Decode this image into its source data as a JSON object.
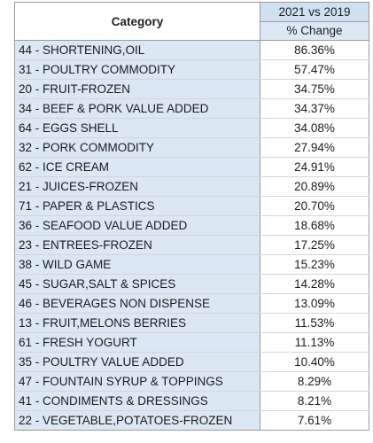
{
  "table": {
    "header": {
      "category": "Category",
      "comparison": "2021 vs 2019",
      "metric": "% Change"
    },
    "rows": [
      {
        "category": "44 - SHORTENING,OIL",
        "change": "86.36%"
      },
      {
        "category": "31 - POULTRY COMMODITY",
        "change": "57.47%"
      },
      {
        "category": "20 - FRUIT-FROZEN",
        "change": "34.75%"
      },
      {
        "category": "34 - BEEF & PORK VALUE ADDED",
        "change": "34.37%"
      },
      {
        "category": "64 - EGGS SHELL",
        "change": "34.08%"
      },
      {
        "category": "32 - PORK COMMODITY",
        "change": "27.94%"
      },
      {
        "category": "62 - ICE CREAM",
        "change": "24.91%"
      },
      {
        "category": "21 - JUICES-FROZEN",
        "change": "20.89%"
      },
      {
        "category": "71 - PAPER & PLASTICS",
        "change": "20.70%"
      },
      {
        "category": "36 - SEAFOOD VALUE ADDED",
        "change": "18.68%"
      },
      {
        "category": "23 - ENTREES-FROZEN",
        "change": "17.25%"
      },
      {
        "category": "38 - WILD GAME",
        "change": "15.23%"
      },
      {
        "category": "45 - SUGAR,SALT & SPICES",
        "change": "14.28%"
      },
      {
        "category": "46 - BEVERAGES NON DISPENSE",
        "change": "13.09%"
      },
      {
        "category": "13 - FRUIT,MELONS BERRIES",
        "change": "11.53%"
      },
      {
        "category": "61 - FRESH YOGURT",
        "change": "11.13%"
      },
      {
        "category": "35 - POULTRY VALUE ADDED",
        "change": "10.40%"
      },
      {
        "category": "47 - FOUNTAIN SYRUP & TOPPINGS",
        "change": "8.29%"
      },
      {
        "category": "41 - CONDIMENTS & DRESSINGS",
        "change": "8.21%"
      },
      {
        "category": "22 - VEGETABLE,POTATOES-FROZEN",
        "change": "7.61%"
      }
    ]
  },
  "colors": {
    "category_fill": "#dbe7f3",
    "header_top_fill": "#cfe1f1",
    "header_bottom_fill": "#dce9f5",
    "grid": "#9a9a9a"
  }
}
